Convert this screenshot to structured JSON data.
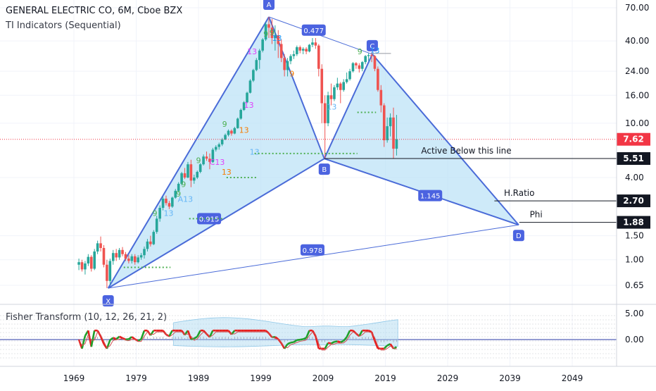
{
  "chart_data": {
    "type": "candlestick",
    "title": "GENERAL ELECTRIC CO, 6M, Cboe BZX",
    "subtitle": "TI Indicators (Sequential)",
    "x_ticks": [
      "1969",
      "1979",
      "1989",
      "1999",
      "2009",
      "2019",
      "2029",
      "2039",
      "2049"
    ],
    "y_ticks": [
      "70.00",
      "40.00",
      "24.00",
      "16.00",
      "10.00",
      "5.51",
      "4.00",
      "2.70",
      "1.88",
      "1.50",
      "1.00",
      "0.65"
    ],
    "price_badges": [
      {
        "value": "7.62",
        "color": "#f23645"
      },
      {
        "value": "5.51",
        "color": "#131722"
      },
      {
        "value": "2.70",
        "color": "#131722"
      },
      {
        "value": "1.88",
        "color": "#131722"
      }
    ],
    "pattern": {
      "name": "Harmonic XABCD",
      "points": [
        {
          "label": "X",
          "year": 1974.5,
          "price": 0.62
        },
        {
          "label": "A",
          "year": 2000.3,
          "price": 60.0
        },
        {
          "label": "B",
          "year": 2009.2,
          "price": 5.5
        },
        {
          "label": "C",
          "year": 2016.9,
          "price": 32.0
        },
        {
          "label": "D",
          "year": 2040.4,
          "price": 1.8
        }
      ],
      "ratios": [
        {
          "label": "0.477",
          "year": 2007.5,
          "price": 48.0
        },
        {
          "label": "0.915",
          "year": 1990.7,
          "price": 2.0
        },
        {
          "label": "1.145",
          "year": 2026.2,
          "price": 2.95
        },
        {
          "label": "0.978",
          "year": 2007.3,
          "price": 1.18
        }
      ]
    },
    "annotations": [
      {
        "text": "Active Below this line",
        "price": 5.51
      },
      {
        "text": "H.Ratio",
        "price": 2.7
      },
      {
        "text": "Phi",
        "price": 1.88
      }
    ],
    "sequential_labels": [
      "9",
      "13",
      "9",
      "13",
      "13",
      "9",
      "13",
      "9",
      "13",
      "9",
      "13",
      "9",
      "C13",
      "9",
      "13",
      "13",
      "9",
      "A13",
      "13",
      "9"
    ],
    "candles": [
      {
        "year": 1969.8,
        "o": 0.92,
        "h": 1.02,
        "l": 0.84,
        "c": 0.96
      },
      {
        "year": 1970.3,
        "o": 0.96,
        "h": 1.0,
        "l": 0.82,
        "c": 0.85
      },
      {
        "year": 1970.8,
        "o": 0.85,
        "h": 0.98,
        "l": 0.78,
        "c": 0.94
      },
      {
        "year": 1971.3,
        "o": 0.94,
        "h": 1.1,
        "l": 0.9,
        "c": 1.05
      },
      {
        "year": 1971.8,
        "o": 1.05,
        "h": 1.08,
        "l": 0.82,
        "c": 0.86
      },
      {
        "year": 1972.3,
        "o": 0.86,
        "h": 1.2,
        "l": 0.84,
        "c": 1.15
      },
      {
        "year": 1972.8,
        "o": 1.15,
        "h": 1.38,
        "l": 1.1,
        "c": 1.32
      },
      {
        "year": 1973.3,
        "o": 1.32,
        "h": 1.48,
        "l": 1.15,
        "c": 1.22
      },
      {
        "year": 1973.8,
        "o": 1.22,
        "h": 1.28,
        "l": 0.88,
        "c": 0.92
      },
      {
        "year": 1974.3,
        "o": 0.92,
        "h": 1.0,
        "l": 0.62,
        "c": 0.7
      },
      {
        "year": 1974.8,
        "o": 0.7,
        "h": 1.02,
        "l": 0.66,
        "c": 0.98
      },
      {
        "year": 1975.3,
        "o": 0.98,
        "h": 1.18,
        "l": 0.92,
        "c": 1.12
      },
      {
        "year": 1975.8,
        "o": 1.12,
        "h": 1.2,
        "l": 0.98,
        "c": 1.04
      },
      {
        "year": 1976.3,
        "o": 1.04,
        "h": 1.22,
        "l": 1.0,
        "c": 1.18
      },
      {
        "year": 1976.8,
        "o": 1.18,
        "h": 1.24,
        "l": 1.06,
        "c": 1.1
      },
      {
        "year": 1977.3,
        "o": 1.1,
        "h": 1.14,
        "l": 0.98,
        "c": 1.02
      },
      {
        "year": 1977.8,
        "o": 1.02,
        "h": 1.08,
        "l": 0.94,
        "c": 0.98
      },
      {
        "year": 1978.3,
        "o": 0.98,
        "h": 1.1,
        "l": 0.94,
        "c": 1.06
      },
      {
        "year": 1978.8,
        "o": 1.06,
        "h": 1.1,
        "l": 0.92,
        "c": 0.96
      },
      {
        "year": 1979.3,
        "o": 0.96,
        "h": 1.08,
        "l": 0.94,
        "c": 1.04
      },
      {
        "year": 1979.8,
        "o": 1.04,
        "h": 1.12,
        "l": 1.0,
        "c": 1.08
      },
      {
        "year": 1980.3,
        "o": 1.08,
        "h": 1.25,
        "l": 1.02,
        "c": 1.2
      },
      {
        "year": 1980.8,
        "o": 1.2,
        "h": 1.42,
        "l": 1.15,
        "c": 1.36
      },
      {
        "year": 1981.3,
        "o": 1.36,
        "h": 1.5,
        "l": 1.25,
        "c": 1.3
      },
      {
        "year": 1981.8,
        "o": 1.3,
        "h": 1.65,
        "l": 1.28,
        "c": 1.6
      },
      {
        "year": 1982.3,
        "o": 1.6,
        "h": 2.1,
        "l": 1.55,
        "c": 2.0
      },
      {
        "year": 1982.8,
        "o": 2.0,
        "h": 2.5,
        "l": 1.9,
        "c": 2.4
      },
      {
        "year": 1983.3,
        "o": 2.4,
        "h": 2.9,
        "l": 2.3,
        "c": 2.8
      },
      {
        "year": 1983.8,
        "o": 2.8,
        "h": 2.95,
        "l": 2.5,
        "c": 2.6
      },
      {
        "year": 1984.3,
        "o": 2.6,
        "h": 2.7,
        "l": 2.35,
        "c": 2.45
      },
      {
        "year": 1984.8,
        "o": 2.45,
        "h": 2.9,
        "l": 2.4,
        "c": 2.85
      },
      {
        "year": 1985.3,
        "o": 2.85,
        "h": 3.3,
        "l": 2.8,
        "c": 3.2
      },
      {
        "year": 1985.8,
        "o": 3.2,
        "h": 3.7,
        "l": 3.1,
        "c": 3.6
      },
      {
        "year": 1986.3,
        "o": 3.6,
        "h": 4.4,
        "l": 3.5,
        "c": 4.3
      },
      {
        "year": 1986.8,
        "o": 4.3,
        "h": 4.7,
        "l": 3.9,
        "c": 4.0
      },
      {
        "year": 1987.3,
        "o": 4.0,
        "h": 5.2,
        "l": 3.95,
        "c": 5.0
      },
      {
        "year": 1987.8,
        "o": 5.0,
        "h": 5.4,
        "l": 3.4,
        "c": 3.8
      },
      {
        "year": 1988.3,
        "o": 3.8,
        "h": 4.2,
        "l": 3.6,
        "c": 4.0
      },
      {
        "year": 1988.8,
        "o": 4.0,
        "h": 4.5,
        "l": 3.9,
        "c": 4.4
      },
      {
        "year": 1989.3,
        "o": 4.4,
        "h": 5.1,
        "l": 4.3,
        "c": 5.0
      },
      {
        "year": 1989.8,
        "o": 5.0,
        "h": 5.9,
        "l": 4.9,
        "c": 5.7
      },
      {
        "year": 1990.3,
        "o": 5.7,
        "h": 6.2,
        "l": 5.3,
        "c": 5.5
      },
      {
        "year": 1990.8,
        "o": 5.5,
        "h": 6.0,
        "l": 4.6,
        "c": 5.2
      },
      {
        "year": 1991.3,
        "o": 5.2,
        "h": 6.6,
        "l": 5.1,
        "c": 6.4
      },
      {
        "year": 1991.8,
        "o": 6.4,
        "h": 6.9,
        "l": 6.2,
        "c": 6.7
      },
      {
        "year": 1992.3,
        "o": 6.7,
        "h": 7.2,
        "l": 6.4,
        "c": 7.0
      },
      {
        "year": 1992.8,
        "o": 7.0,
        "h": 7.8,
        "l": 6.8,
        "c": 7.6
      },
      {
        "year": 1993.3,
        "o": 7.6,
        "h": 8.4,
        "l": 7.5,
        "c": 8.2
      },
      {
        "year": 1993.8,
        "o": 8.2,
        "h": 9.0,
        "l": 8.0,
        "c": 8.8
      },
      {
        "year": 1994.3,
        "o": 8.8,
        "h": 9.0,
        "l": 8.1,
        "c": 8.4
      },
      {
        "year": 1994.8,
        "o": 8.4,
        "h": 9.4,
        "l": 8.3,
        "c": 9.2
      },
      {
        "year": 1995.3,
        "o": 9.2,
        "h": 11.0,
        "l": 9.1,
        "c": 10.8
      },
      {
        "year": 1995.8,
        "o": 10.8,
        "h": 12.8,
        "l": 10.6,
        "c": 12.5
      },
      {
        "year": 1996.3,
        "o": 12.5,
        "h": 14.5,
        "l": 12.3,
        "c": 14.2
      },
      {
        "year": 1996.8,
        "o": 14.2,
        "h": 17.0,
        "l": 14.0,
        "c": 16.7
      },
      {
        "year": 1997.3,
        "o": 16.7,
        "h": 21.0,
        "l": 16.5,
        "c": 20.5
      },
      {
        "year": 1997.8,
        "o": 20.5,
        "h": 25.0,
        "l": 20.0,
        "c": 24.5
      },
      {
        "year": 1998.3,
        "o": 24.5,
        "h": 30.0,
        "l": 24.0,
        "c": 29.0
      },
      {
        "year": 1998.8,
        "o": 29.0,
        "h": 35.0,
        "l": 25.0,
        "c": 34.0
      },
      {
        "year": 1999.3,
        "o": 34.0,
        "h": 42.0,
        "l": 33.0,
        "c": 41.0
      },
      {
        "year": 1999.8,
        "o": 41.0,
        "h": 55.0,
        "l": 40.0,
        "c": 53.0
      },
      {
        "year": 2000.3,
        "o": 53.0,
        "h": 60.0,
        "l": 42.0,
        "c": 50.0
      },
      {
        "year": 2000.8,
        "o": 50.0,
        "h": 58.0,
        "l": 38.0,
        "c": 42.0
      },
      {
        "year": 2001.3,
        "o": 42.0,
        "h": 52.0,
        "l": 34.0,
        "c": 44.0
      },
      {
        "year": 2001.8,
        "o": 44.0,
        "h": 48.0,
        "l": 30.0,
        "c": 38.0
      },
      {
        "year": 2002.3,
        "o": 38.0,
        "h": 41.0,
        "l": 28.0,
        "c": 30.0
      },
      {
        "year": 2002.8,
        "o": 30.0,
        "h": 32.0,
        "l": 22.0,
        "c": 24.5
      },
      {
        "year": 2003.3,
        "o": 24.5,
        "h": 30.0,
        "l": 22.0,
        "c": 28.5
      },
      {
        "year": 2003.8,
        "o": 28.5,
        "h": 32.0,
        "l": 27.0,
        "c": 31.0
      },
      {
        "year": 2004.3,
        "o": 31.0,
        "h": 34.0,
        "l": 29.5,
        "c": 32.0
      },
      {
        "year": 2004.8,
        "o": 32.0,
        "h": 37.0,
        "l": 31.0,
        "c": 36.0
      },
      {
        "year": 2005.3,
        "o": 36.0,
        "h": 37.0,
        "l": 32.5,
        "c": 34.0
      },
      {
        "year": 2005.8,
        "o": 34.0,
        "h": 36.0,
        "l": 32.0,
        "c": 35.0
      },
      {
        "year": 2006.3,
        "o": 35.0,
        "h": 36.0,
        "l": 32.0,
        "c": 33.5
      },
      {
        "year": 2006.8,
        "o": 33.5,
        "h": 38.0,
        "l": 33.0,
        "c": 37.5
      },
      {
        "year": 2007.3,
        "o": 37.5,
        "h": 42.0,
        "l": 36.0,
        "c": 39.0
      },
      {
        "year": 2007.8,
        "o": 39.0,
        "h": 42.0,
        "l": 35.0,
        "c": 37.0
      },
      {
        "year": 2008.3,
        "o": 37.0,
        "h": 38.0,
        "l": 22.0,
        "c": 25.0
      },
      {
        "year": 2008.8,
        "o": 25.0,
        "h": 27.0,
        "l": 10.0,
        "c": 14.0
      },
      {
        "year": 2009.3,
        "o": 14.0,
        "h": 16.0,
        "l": 5.5,
        "c": 10.0
      },
      {
        "year": 2009.8,
        "o": 10.0,
        "h": 17.0,
        "l": 9.5,
        "c": 16.0
      },
      {
        "year": 2010.3,
        "o": 16.0,
        "h": 19.5,
        "l": 13.5,
        "c": 15.0
      },
      {
        "year": 2010.8,
        "o": 15.0,
        "h": 19.0,
        "l": 14.5,
        "c": 18.3
      },
      {
        "year": 2011.3,
        "o": 18.3,
        "h": 21.5,
        "l": 17.5,
        "c": 19.5
      },
      {
        "year": 2011.8,
        "o": 19.5,
        "h": 20.0,
        "l": 14.0,
        "c": 17.5
      },
      {
        "year": 2012.3,
        "o": 17.5,
        "h": 21.0,
        "l": 17.0,
        "c": 20.0
      },
      {
        "year": 2012.8,
        "o": 20.0,
        "h": 23.5,
        "l": 19.5,
        "c": 21.0
      },
      {
        "year": 2013.3,
        "o": 21.0,
        "h": 25.0,
        "l": 20.5,
        "c": 24.0
      },
      {
        "year": 2013.8,
        "o": 24.0,
        "h": 28.0,
        "l": 23.5,
        "c": 27.5
      },
      {
        "year": 2014.3,
        "o": 27.5,
        "h": 28.0,
        "l": 25.0,
        "c": 26.5
      },
      {
        "year": 2014.8,
        "o": 26.5,
        "h": 27.5,
        "l": 23.5,
        "c": 25.0
      },
      {
        "year": 2015.3,
        "o": 25.0,
        "h": 28.5,
        "l": 24.0,
        "c": 28.0
      },
      {
        "year": 2015.8,
        "o": 28.0,
        "h": 31.5,
        "l": 27.0,
        "c": 31.0
      },
      {
        "year": 2016.3,
        "o": 31.0,
        "h": 32.5,
        "l": 28.5,
        "c": 31.5
      },
      {
        "year": 2016.8,
        "o": 31.5,
        "h": 33.0,
        "l": 28.0,
        "c": 31.0
      },
      {
        "year": 2017.3,
        "o": 31.0,
        "h": 31.5,
        "l": 24.0,
        "c": 25.0
      },
      {
        "year": 2017.8,
        "o": 25.0,
        "h": 26.0,
        "l": 17.0,
        "c": 17.5
      },
      {
        "year": 2018.3,
        "o": 17.5,
        "h": 19.0,
        "l": 12.0,
        "c": 13.5
      },
      {
        "year": 2018.8,
        "o": 13.5,
        "h": 14.0,
        "l": 6.7,
        "c": 7.5
      },
      {
        "year": 2019.3,
        "o": 7.5,
        "h": 11.0,
        "l": 7.2,
        "c": 9.5
      },
      {
        "year": 2019.8,
        "o": 9.5,
        "h": 11.8,
        "l": 8.0,
        "c": 11.0
      },
      {
        "year": 2020.3,
        "o": 11.0,
        "h": 13.0,
        "l": 5.5,
        "c": 6.5
      },
      {
        "year": 2020.8,
        "o": 6.5,
        "h": 11.5,
        "l": 5.8,
        "c": 7.62
      }
    ]
  },
  "fisher": {
    "legend": "Fisher Transform (10, 12, 26, 21, 2)",
    "y_ticks": [
      "5.00",
      "0.00"
    ]
  },
  "colors": {
    "up": "#26a69a",
    "down": "#ef5350",
    "pattern_fill": "#bde3f7",
    "pattern_line": "#4a6bd8",
    "badge": "#4b63e0"
  }
}
